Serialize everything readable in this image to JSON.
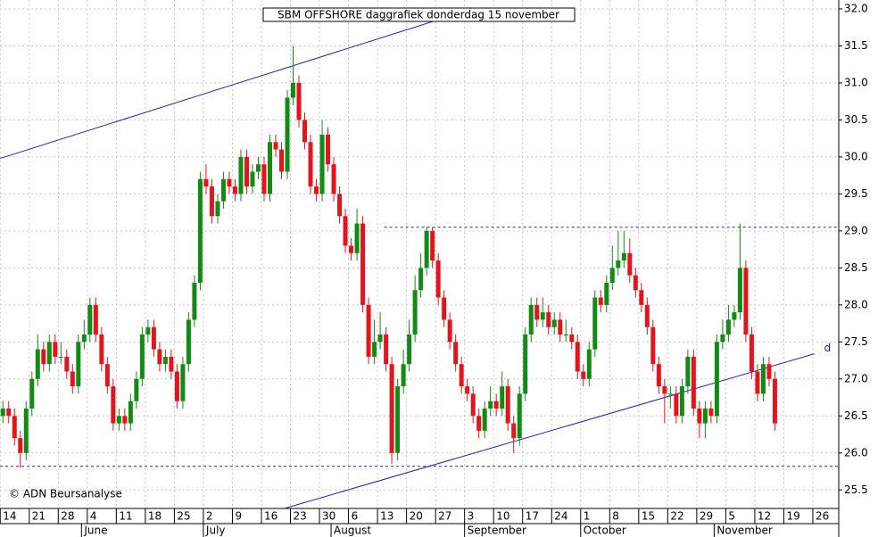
{
  "chart_data": {
    "type": "candlestick",
    "title": "SBM OFFSHORE daggrafiek donderdag 15 november",
    "annotation": "© ADN Beursanalyse",
    "trendline_label": "d",
    "up_color": "#138a13",
    "down_color": "#e3141b",
    "line_color": "#2020c0",
    "grid": true,
    "ylim": [
      25.25,
      32.12
    ],
    "yticks": [
      {
        "value": 25.5,
        "label": "25.5"
      },
      {
        "value": 26,
        "label": "26.0"
      },
      26.5,
      {
        "value": 27,
        "label": "27.0"
      },
      27.5,
      {
        "value": 28,
        "label": "28.0"
      },
      28.5,
      {
        "value": 29,
        "label": "29.0"
      },
      29.5,
      {
        "value": 30,
        "label": "30.0"
      },
      30.5,
      {
        "value": 31,
        "label": "31.0"
      },
      31.5,
      {
        "value": 32,
        "label": "32.0"
      }
    ],
    "xlim": [
      -0.5,
      144
    ],
    "xticks": [
      {
        "value": 0,
        "label": "14"
      },
      {
        "value": 5,
        "label": "21"
      },
      {
        "value": 10,
        "label": "28"
      },
      {
        "value": 15,
        "label": "4"
      },
      {
        "value": 20,
        "label": "11"
      },
      {
        "value": 25,
        "label": "18"
      },
      {
        "value": 30,
        "label": "25"
      },
      {
        "value": 35,
        "label": "2"
      },
      {
        "value": 40,
        "label": "9"
      },
      {
        "value": 45,
        "label": "16"
      },
      {
        "value": 50,
        "label": "23"
      },
      {
        "value": 55,
        "label": "30"
      },
      {
        "value": 60,
        "label": "6"
      },
      {
        "value": 65,
        "label": "13"
      },
      {
        "value": 70,
        "label": "20"
      },
      {
        "value": 75,
        "label": "27"
      },
      {
        "value": 80,
        "label": "3"
      },
      {
        "value": 85,
        "label": "10"
      },
      {
        "value": 90,
        "label": "17"
      },
      {
        "value": 95,
        "label": "24"
      },
      {
        "value": 100,
        "label": "1"
      },
      {
        "value": 105,
        "label": "8"
      },
      {
        "value": 110,
        "label": "15"
      },
      {
        "value": 115,
        "label": "22"
      },
      {
        "value": 120,
        "label": "29"
      },
      {
        "value": 125,
        "label": "5"
      },
      {
        "value": 130,
        "label": "12"
      },
      {
        "value": 135,
        "label": "19"
      },
      {
        "value": 140,
        "label": "26"
      }
    ],
    "month_ticks": [
      {
        "value": 14,
        "label": "June"
      },
      {
        "value": 35,
        "label": "July"
      },
      {
        "value": 57,
        "label": "August"
      },
      {
        "value": 80,
        "label": "September"
      },
      {
        "value": 100,
        "label": "October"
      },
      {
        "value": 123,
        "label": "November"
      }
    ],
    "lines": [
      {
        "style": "solid",
        "x": [
          -0.46,
          77.7
        ],
        "y": [
          29.98,
          31.92
        ]
      },
      {
        "style": "solid",
        "x": [
          48.5,
          139.8
        ],
        "y": [
          25.25,
          27.34
        ]
      },
      {
        "style": "dashed",
        "x": [
          65.7,
          144
        ],
        "y": [
          29.05,
          29.05
        ]
      },
      {
        "style": "dashed",
        "x": [
          -0.5,
          144
        ],
        "y": [
          25.82,
          25.82
        ]
      }
    ],
    "ohlc": [
      [
        26.5,
        26.7,
        26.4,
        26.6
      ],
      [
        26.6,
        26.7,
        26.4,
        26.5
      ],
      [
        26.5,
        26.6,
        26.1,
        26.2
      ],
      [
        26.2,
        26.3,
        25.8,
        26.0
      ],
      [
        26.0,
        26.7,
        25.9,
        26.6
      ],
      [
        26.6,
        27.1,
        26.5,
        27.0
      ],
      [
        27.0,
        27.6,
        26.9,
        27.4
      ],
      [
        27.4,
        27.5,
        27.1,
        27.2
      ],
      [
        27.2,
        27.6,
        27.1,
        27.5
      ],
      [
        27.5,
        27.6,
        27.2,
        27.3
      ],
      [
        27.3,
        27.5,
        27.2,
        27.3
      ],
      [
        27.3,
        27.4,
        27.0,
        27.1
      ],
      [
        27.1,
        27.2,
        26.8,
        26.9
      ],
      [
        26.9,
        27.6,
        26.8,
        27.5
      ],
      [
        27.5,
        27.8,
        27.4,
        27.6
      ],
      [
        27.6,
        28.1,
        27.5,
        28.0
      ],
      [
        28.0,
        28.1,
        27.5,
        27.6
      ],
      [
        27.6,
        27.7,
        27.1,
        27.2
      ],
      [
        27.2,
        27.3,
        26.8,
        26.9
      ],
      [
        26.9,
        27.0,
        26.3,
        26.4
      ],
      [
        26.4,
        26.6,
        26.3,
        26.5
      ],
      [
        26.5,
        26.6,
        26.3,
        26.4
      ],
      [
        26.4,
        26.8,
        26.3,
        26.7
      ],
      [
        26.7,
        27.1,
        26.6,
        27.0
      ],
      [
        27.0,
        27.7,
        26.9,
        27.6
      ],
      [
        27.6,
        27.8,
        27.5,
        27.7
      ],
      [
        27.7,
        27.8,
        27.3,
        27.4
      ],
      [
        27.4,
        27.5,
        27.1,
        27.2
      ],
      [
        27.2,
        27.4,
        27.1,
        27.3
      ],
      [
        27.3,
        27.4,
        27.0,
        27.1
      ],
      [
        27.1,
        27.2,
        26.6,
        26.7
      ],
      [
        26.7,
        27.3,
        26.6,
        27.2
      ],
      [
        27.2,
        27.9,
        27.1,
        27.8
      ],
      [
        27.8,
        28.4,
        27.7,
        28.3
      ],
      [
        28.3,
        29.8,
        28.2,
        29.7
      ],
      [
        29.7,
        29.9,
        29.5,
        29.6
      ],
      [
        29.6,
        29.7,
        29.1,
        29.2
      ],
      [
        29.2,
        29.5,
        29.1,
        29.4
      ],
      [
        29.4,
        29.8,
        29.3,
        29.7
      ],
      [
        29.7,
        29.8,
        29.5,
        29.6
      ],
      [
        29.6,
        29.7,
        29.4,
        29.5
      ],
      [
        29.5,
        30.1,
        29.4,
        30.0
      ],
      [
        30.0,
        30.1,
        29.5,
        29.6
      ],
      [
        29.6,
        29.9,
        29.5,
        29.8
      ],
      [
        29.8,
        30.0,
        29.7,
        29.9
      ],
      [
        29.9,
        30.0,
        29.4,
        29.5
      ],
      [
        29.5,
        30.3,
        29.4,
        30.2
      ],
      [
        30.2,
        30.3,
        30.0,
        30.1
      ],
      [
        30.1,
        30.2,
        29.7,
        29.8
      ],
      [
        29.8,
        30.9,
        29.7,
        30.8
      ],
      [
        30.8,
        31.5,
        30.7,
        31.0
      ],
      [
        31.0,
        31.1,
        30.4,
        30.5
      ],
      [
        30.5,
        30.6,
        30.1,
        30.2
      ],
      [
        30.2,
        30.3,
        29.5,
        29.6
      ],
      [
        29.6,
        29.7,
        29.4,
        29.5
      ],
      [
        29.5,
        30.5,
        29.4,
        30.3
      ],
      [
        30.3,
        30.4,
        29.8,
        29.9
      ],
      [
        29.9,
        30.0,
        29.4,
        29.5
      ],
      [
        29.5,
        29.6,
        29.1,
        29.2
      ],
      [
        29.2,
        29.3,
        28.7,
        28.8
      ],
      [
        28.8,
        28.9,
        28.6,
        28.7
      ],
      [
        28.7,
        29.3,
        28.6,
        29.1
      ],
      [
        29.1,
        29.2,
        27.9,
        28.0
      ],
      [
        28.0,
        28.1,
        27.2,
        27.3
      ],
      [
        27.3,
        27.8,
        27.2,
        27.5
      ],
      [
        27.5,
        27.9,
        27.4,
        27.6
      ],
      [
        27.6,
        27.7,
        27.1,
        27.2
      ],
      [
        27.2,
        27.3,
        25.85,
        26.0
      ],
      [
        26.0,
        27.0,
        25.9,
        26.9
      ],
      [
        26.9,
        27.4,
        26.8,
        27.2
      ],
      [
        27.2,
        27.8,
        27.1,
        27.6
      ],
      [
        27.6,
        28.4,
        27.5,
        28.2
      ],
      [
        28.2,
        28.7,
        28.1,
        28.5
      ],
      [
        28.5,
        29.05,
        28.4,
        29.0
      ],
      [
        29.0,
        29.05,
        28.5,
        28.6
      ],
      [
        28.6,
        28.7,
        28.0,
        28.1
      ],
      [
        28.1,
        28.2,
        27.7,
        27.8
      ],
      [
        27.8,
        27.9,
        27.4,
        27.5
      ],
      [
        27.5,
        27.6,
        27.1,
        27.2
      ],
      [
        27.2,
        27.3,
        26.8,
        26.9
      ],
      [
        26.9,
        27.0,
        26.7,
        26.8
      ],
      [
        26.8,
        26.9,
        26.4,
        26.5
      ],
      [
        26.5,
        26.6,
        26.2,
        26.3
      ],
      [
        26.3,
        26.7,
        26.2,
        26.6
      ],
      [
        26.6,
        26.9,
        26.5,
        26.7
      ],
      [
        26.7,
        26.8,
        26.5,
        26.6
      ],
      [
        26.6,
        27.1,
        26.5,
        26.9
      ],
      [
        26.9,
        27.0,
        26.3,
        26.4
      ],
      [
        26.4,
        26.5,
        26.0,
        26.2
      ],
      [
        26.2,
        26.9,
        26.1,
        26.8
      ],
      [
        26.8,
        27.7,
        26.7,
        27.6
      ],
      [
        27.6,
        28.1,
        27.5,
        28.0
      ],
      [
        28.0,
        28.1,
        27.7,
        27.8
      ],
      [
        27.8,
        28.1,
        27.7,
        27.9
      ],
      [
        27.9,
        28.0,
        27.6,
        27.7
      ],
      [
        27.7,
        27.9,
        27.6,
        27.8
      ],
      [
        27.8,
        27.9,
        27.5,
        27.6
      ],
      [
        27.6,
        27.8,
        27.5,
        27.6
      ],
      [
        27.6,
        27.7,
        27.4,
        27.5
      ],
      [
        27.5,
        27.6,
        27.0,
        27.1
      ],
      [
        27.1,
        27.2,
        26.9,
        27.0
      ],
      [
        27.0,
        27.5,
        26.9,
        27.4
      ],
      [
        27.4,
        28.2,
        27.3,
        28.1
      ],
      [
        28.1,
        28.2,
        27.9,
        28.0
      ],
      [
        28.0,
        28.4,
        27.9,
        28.3
      ],
      [
        28.3,
        28.8,
        28.2,
        28.5
      ],
      [
        28.5,
        29.0,
        28.4,
        28.6
      ],
      [
        28.6,
        29.0,
        28.5,
        28.7
      ],
      [
        28.7,
        28.9,
        28.3,
        28.4
      ],
      [
        28.4,
        28.5,
        28.1,
        28.2
      ],
      [
        28.2,
        28.3,
        27.9,
        28.0
      ],
      [
        28.0,
        28.1,
        27.6,
        27.7
      ],
      [
        27.7,
        27.8,
        27.1,
        27.2
      ],
      [
        27.2,
        27.3,
        26.8,
        26.9
      ],
      [
        26.9,
        27.0,
        26.4,
        26.8
      ],
      [
        26.8,
        26.9,
        26.6,
        26.8
      ],
      [
        26.8,
        26.9,
        26.4,
        26.5
      ],
      [
        26.5,
        27.0,
        26.4,
        26.9
      ],
      [
        26.9,
        27.4,
        26.8,
        27.3
      ],
      [
        27.3,
        27.4,
        26.5,
        26.6
      ],
      [
        26.6,
        26.7,
        26.2,
        26.4
      ],
      [
        26.4,
        26.7,
        26.2,
        26.6
      ],
      [
        26.6,
        26.7,
        26.4,
        26.5
      ],
      [
        26.5,
        27.6,
        26.4,
        27.5
      ],
      [
        27.5,
        27.8,
        27.4,
        27.6
      ],
      [
        27.6,
        28.0,
        27.5,
        27.8
      ],
      [
        27.8,
        28.0,
        27.7,
        27.9
      ],
      [
        27.9,
        29.1,
        27.8,
        28.5
      ],
      [
        28.5,
        28.6,
        27.5,
        27.6
      ],
      [
        27.6,
        27.7,
        27.0,
        27.1
      ],
      [
        27.1,
        27.2,
        26.7,
        26.8
      ],
      [
        26.8,
        27.3,
        26.7,
        27.2
      ],
      [
        27.2,
        27.3,
        26.9,
        27.0
      ],
      [
        27.0,
        27.1,
        26.3,
        26.4
      ]
    ]
  }
}
